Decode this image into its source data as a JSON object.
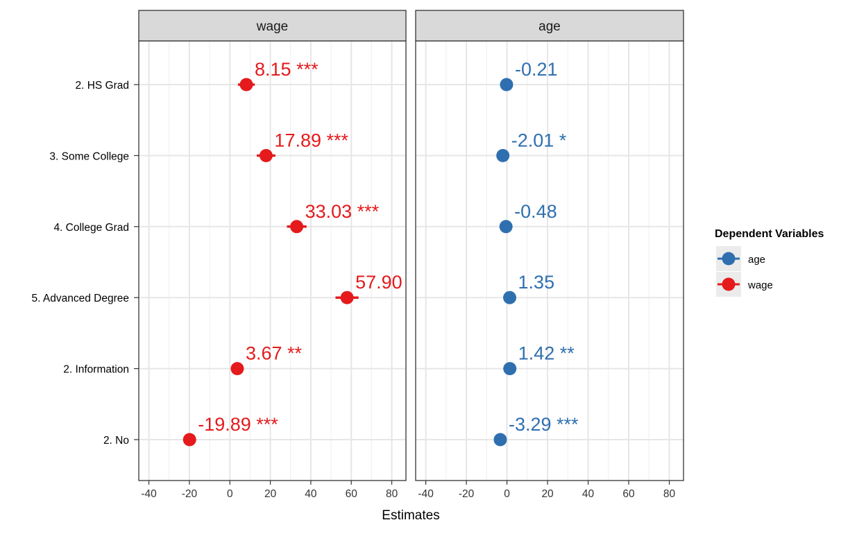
{
  "chart_data": {
    "type": "scatter",
    "xlabel": "Estimates",
    "ylabel": "",
    "xlim": [
      -45,
      87
    ],
    "x_ticks": [
      "-40",
      "-20",
      "0",
      "20",
      "40",
      "60",
      "80"
    ],
    "x_tick_values": [
      -40,
      -20,
      0,
      20,
      40,
      60,
      80
    ],
    "categories": [
      "2. HS Grad",
      "3. Some College",
      "4. College Grad",
      "5. Advanced Degree",
      "2. Information",
      "2. No"
    ],
    "grid": true,
    "legend_position": "right",
    "panels": [
      {
        "title": "wage",
        "series_name": "wage",
        "color": "#e41a1c",
        "estimates": [
          8.15,
          17.89,
          33.03,
          57.9,
          3.67,
          -19.89
        ],
        "ci_low": [
          4.0,
          13.3,
          28.2,
          52.2,
          null,
          null
        ],
        "ci_high": [
          12.3,
          22.5,
          37.9,
          63.6,
          null,
          null
        ],
        "labels": [
          "8.15 ***",
          "17.89 ***",
          "33.03 ***",
          "57.90",
          "3.67 **",
          "-19.89 ***"
        ]
      },
      {
        "title": "age",
        "series_name": "age",
        "color": "#2f6fb0",
        "estimates": [
          -0.21,
          -2.01,
          -0.48,
          1.35,
          1.42,
          -3.29
        ],
        "ci_low": [
          null,
          null,
          null,
          null,
          null,
          null
        ],
        "ci_high": [
          null,
          null,
          null,
          null,
          null,
          null
        ],
        "labels": [
          "-0.21",
          "-2.01 *",
          "-0.48",
          "1.35",
          "1.42 **",
          "-3.29 ***"
        ]
      }
    ],
    "legend": {
      "title": "Dependent Variables",
      "entries": [
        {
          "label": "age",
          "color": "#2f6fb0"
        },
        {
          "label": "wage",
          "color": "#e41a1c"
        }
      ]
    }
  }
}
